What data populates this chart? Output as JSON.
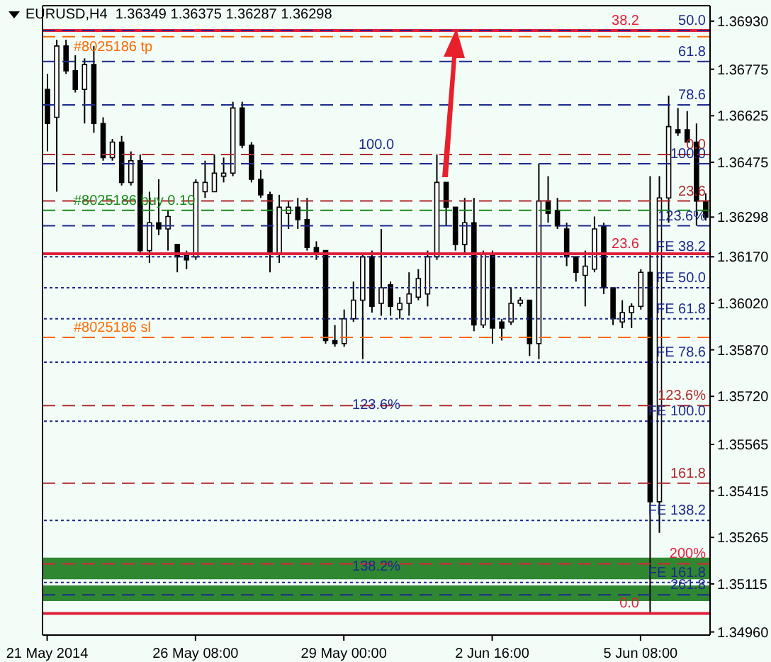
{
  "chart_data": {
    "type": "candlestick",
    "title": "EURUSD,H4  1.36349 1.36375 1.36287 1.36298",
    "categories": [
      "21 May 2014",
      null,
      null,
      null,
      null,
      null,
      null,
      null,
      null,
      null,
      null,
      null,
      null,
      null,
      null,
      null,
      "26 May 08:00",
      null,
      null,
      null,
      null,
      null,
      null,
      null,
      null,
      null,
      null,
      null,
      null,
      null,
      null,
      null,
      "29 May 00:00",
      null,
      null,
      null,
      null,
      null,
      null,
      null,
      null,
      null,
      null,
      null,
      null,
      null,
      null,
      null,
      "2 Jun 16:00",
      null,
      null,
      null,
      null,
      null,
      null,
      null,
      null,
      null,
      null,
      null,
      null,
      null,
      null,
      null,
      "5 Jun 08:00",
      null,
      null,
      null,
      null,
      null,
      null,
      null
    ],
    "ohlc": [
      [
        1.3671,
        1.3676,
        1.3651,
        1.366
      ],
      [
        1.3662,
        1.3687,
        1.3638,
        1.3685
      ],
      [
        1.3685,
        1.3687,
        1.3676,
        1.3677
      ],
      [
        1.3677,
        1.3682,
        1.367,
        1.3671
      ],
      [
        1.3671,
        1.3681,
        1.366,
        1.3679
      ],
      [
        1.3679,
        1.3685,
        1.3657,
        1.366
      ],
      [
        1.366,
        1.3662,
        1.3648,
        1.3649
      ],
      [
        1.3649,
        1.3655,
        1.3648,
        1.3654
      ],
      [
        1.3654,
        1.3656,
        1.364,
        1.3641
      ],
      [
        1.3641,
        1.3651,
        1.364,
        1.3648
      ],
      [
        1.3648,
        1.365,
        1.3618,
        1.3619
      ],
      [
        1.3619,
        1.3638,
        1.3615,
        1.3628
      ],
      [
        1.3628,
        1.3642,
        1.3624,
        1.3626
      ],
      [
        1.3626,
        1.3632,
        1.3619,
        1.363
      ],
      [
        1.3621,
        1.3621,
        1.3612,
        1.3617
      ],
      [
        1.3618,
        1.3619,
        1.3613,
        1.3616
      ],
      [
        1.3617,
        1.3642,
        1.3616,
        1.3641
      ],
      [
        1.3638,
        1.3648,
        1.3636,
        1.3641
      ],
      [
        1.3638,
        1.365,
        1.3638,
        1.3644
      ],
      [
        1.3643,
        1.3649,
        1.3641,
        1.3644
      ],
      [
        1.3644,
        1.3667,
        1.3643,
        1.3665
      ],
      [
        1.3665,
        1.3667,
        1.3652,
        1.3653
      ],
      [
        1.3653,
        1.3654,
        1.3641,
        1.3642
      ],
      [
        1.3642,
        1.3645,
        1.3636,
        1.3637
      ],
      [
        1.3637,
        1.3638,
        1.3612,
        1.3618
      ],
      [
        1.3618,
        1.3637,
        1.3615,
        1.3633
      ],
      [
        1.3631,
        1.3635,
        1.3626,
        1.3633
      ],
      [
        1.3633,
        1.3636,
        1.3626,
        1.3629
      ],
      [
        1.3629,
        1.3636,
        1.3619,
        1.362
      ],
      [
        1.362,
        1.3622,
        1.3616,
        1.3618
      ],
      [
        1.3619,
        1.3619,
        1.3589,
        1.359
      ],
      [
        1.359,
        1.3595,
        1.3588,
        1.3589
      ],
      [
        1.3589,
        1.36,
        1.3588,
        1.3597
      ],
      [
        1.3597,
        1.3609,
        1.3596,
        1.3603
      ],
      [
        1.3603,
        1.3618,
        1.3584,
        1.3617
      ],
      [
        1.3617,
        1.3619,
        1.3599,
        1.3601
      ],
      [
        1.3602,
        1.3626,
        1.3598,
        1.3607
      ],
      [
        1.3608,
        1.3609,
        1.3598,
        1.3601
      ],
      [
        1.36,
        1.3604,
        1.3597,
        1.3602
      ],
      [
        1.3602,
        1.3612,
        1.3598,
        1.3605
      ],
      [
        1.3604,
        1.3613,
        1.3603,
        1.361
      ],
      [
        1.3605,
        1.3619,
        1.3601,
        1.3617
      ],
      [
        1.3617,
        1.365,
        1.3616,
        1.3641
      ],
      [
        1.3641,
        1.3641,
        1.3627,
        1.3633
      ],
      [
        1.3633,
        1.3633,
        1.3619,
        1.3621
      ],
      [
        1.3621,
        1.3636,
        1.3618,
        1.3628
      ],
      [
        1.3628,
        1.3636,
        1.3593,
        1.3595
      ],
      [
        1.3595,
        1.3619,
        1.3594,
        1.3618
      ],
      [
        1.3618,
        1.3619,
        1.3589,
        1.3594
      ],
      [
        1.3596,
        1.3597,
        1.359,
        1.3594
      ],
      [
        1.3596,
        1.3607,
        1.3595,
        1.3602
      ],
      [
        1.3602,
        1.3604,
        1.3601,
        1.3603
      ],
      [
        1.3603,
        1.3603,
        1.3585,
        1.3589
      ],
      [
        1.3589,
        1.3647,
        1.3584,
        1.3635
      ],
      [
        1.3635,
        1.3643,
        1.3628,
        1.3631
      ],
      [
        1.3632,
        1.3636,
        1.3626,
        1.3627
      ],
      [
        1.3626,
        1.3628,
        1.3614,
        1.3617
      ],
      [
        1.3617,
        1.3617,
        1.3609,
        1.3612
      ],
      [
        1.3611,
        1.3619,
        1.3601,
        1.3614
      ],
      [
        1.3613,
        1.363,
        1.3612,
        1.3626
      ],
      [
        1.3627,
        1.3628,
        1.3605,
        1.3607
      ],
      [
        1.3607,
        1.3607,
        1.3595,
        1.3597
      ],
      [
        1.3596,
        1.3603,
        1.3594,
        1.3599
      ],
      [
        1.3599,
        1.3602,
        1.3594,
        1.3601
      ],
      [
        1.3601,
        1.3613,
        1.36,
        1.3612
      ],
      [
        1.3612,
        1.3643,
        1.3502,
        1.3538
      ],
      [
        1.3538,
        1.3643,
        1.3528,
        1.3636
      ],
      [
        1.3636,
        1.3669,
        1.3628,
        1.3659
      ],
      [
        1.3658,
        1.3665,
        1.3656,
        1.3657
      ],
      [
        1.3658,
        1.3664,
        1.3654,
        1.3654
      ],
      [
        1.3654,
        1.366,
        1.3627,
        1.3635
      ],
      [
        1.36349,
        1.36375,
        1.36287,
        1.36298
      ]
    ],
    "ylim": [
      1.3495,
      1.3698
    ],
    "yticks": [
      {
        "value": 1.3693,
        "label": "1.36930"
      },
      {
        "value": 1.36775,
        "label": "1.36775"
      },
      {
        "value": 1.36625,
        "label": "1.36625"
      },
      {
        "value": 1.36475,
        "label": "1.36475"
      },
      {
        "value": 1.36298,
        "label": "1.36298"
      },
      {
        "value": 1.3617,
        "label": "1.36170"
      },
      {
        "value": 1.3602,
        "label": "1.36020"
      },
      {
        "value": 1.3587,
        "label": "1.35870"
      },
      {
        "value": 1.3572,
        "label": "1.35720"
      },
      {
        "value": 1.35565,
        "label": "1.35565"
      },
      {
        "value": 1.35415,
        "label": "1.35415"
      },
      {
        "value": 1.35265,
        "label": "1.35265"
      },
      {
        "value": 1.35115,
        "label": "1.35115"
      },
      {
        "value": 1.3496,
        "label": "1.34960"
      }
    ],
    "ref_lines": [
      {
        "axis": "y",
        "value": 1.369,
        "color": "#e0203c",
        "line_style": "solid"
      },
      {
        "axis": "y",
        "value": 1.3688,
        "color": "#ff6a00",
        "line_style": "dashed"
      },
      {
        "axis": "y",
        "value": 1.369,
        "color": "#1c2a8c",
        "line_style": "dashed"
      },
      {
        "axis": "y",
        "value": 1.368,
        "color": "#1c2a8c",
        "line_style": "dashed"
      },
      {
        "axis": "y",
        "value": 1.3666,
        "color": "#1c2a8c",
        "line_style": "dashed"
      },
      {
        "axis": "y",
        "value": 1.365,
        "color": "#b02a2a",
        "line_style": "dashed"
      },
      {
        "axis": "y",
        "value": 1.3647,
        "color": "#1c2a8c",
        "line_style": "dashed"
      },
      {
        "axis": "y",
        "value": 1.3635,
        "color": "#b02a2a",
        "line_style": "dashed"
      },
      {
        "axis": "y",
        "value": 1.3632,
        "color": "#1a8a1a",
        "line_style": "dashed"
      },
      {
        "axis": "y",
        "value": 1.3627,
        "color": "#1c2a8c",
        "line_style": "dashed"
      },
      {
        "axis": "y",
        "value": 1.3618,
        "color": "#e0203c",
        "line_style": "solid"
      },
      {
        "axis": "y",
        "value": 1.3617,
        "color": "#1c2a8c",
        "line_style": "dotted"
      },
      {
        "axis": "y",
        "value": 1.3607,
        "color": "#1c2a8c",
        "line_style": "dotted"
      },
      {
        "axis": "y",
        "value": 1.3597,
        "color": "#1c2a8c",
        "line_style": "dotted"
      },
      {
        "axis": "y",
        "value": 1.3591,
        "color": "#ff6a00",
        "line_style": "dashed"
      },
      {
        "axis": "y",
        "value": 1.3583,
        "color": "#1c2a8c",
        "line_style": "dotted"
      },
      {
        "axis": "y",
        "value": 1.3569,
        "color": "#b02a2a",
        "line_style": "dashed"
      },
      {
        "axis": "y",
        "value": 1.3564,
        "color": "#1c2a8c",
        "line_style": "dotted"
      },
      {
        "axis": "y",
        "value": 1.3544,
        "color": "#b02a2a",
        "line_style": "dashed"
      },
      {
        "axis": "y",
        "value": 1.3532,
        "color": "#1c2a8c",
        "line_style": "dotted"
      },
      {
        "axis": "y",
        "value": 1.3518,
        "color": "#e0203c",
        "line_style": "dashed"
      },
      {
        "axis": "y",
        "value": 1.3512,
        "color": "#1c2a8c",
        "line_style": "dotted"
      },
      {
        "axis": "y",
        "value": 1.3508,
        "color": "#1c2a8c",
        "line_style": "dashed"
      },
      {
        "axis": "y",
        "value": 1.3502,
        "color": "#e0203c",
        "line_style": "solid"
      }
    ],
    "bands": [
      {
        "axis": "y",
        "from": 1.3513,
        "to": 1.352,
        "color": "#1b7a1b"
      },
      {
        "axis": "y",
        "from": 1.3506,
        "to": 1.3511,
        "color": "#1b7a1b"
      }
    ],
    "annotations": [
      {
        "text": "38.2",
        "y": 1.369
      },
      {
        "text": "#8025186 tp",
        "y": 1.3688
      },
      {
        "text": "50.0",
        "y": 1.369
      },
      {
        "text": "61.8",
        "y": 1.368
      },
      {
        "text": "78.6",
        "y": 1.3666
      },
      {
        "text": "0.0",
        "y": 1.365
      },
      {
        "text": "100.0",
        "y": 1.3647
      },
      {
        "text": "23.6",
        "y": 1.3635
      },
      {
        "text": "#8025186 buy 0.10",
        "y": 1.3632
      },
      {
        "text": "123.6%",
        "y": 1.3627
      },
      {
        "text": "23.6",
        "y": 1.3618
      },
      {
        "text": "FE 38.2",
        "y": 1.3617
      },
      {
        "text": "FE 50.0",
        "y": 1.3607
      },
      {
        "text": "FE 61.8",
        "y": 1.3597
      },
      {
        "text": "#8025186 sl",
        "y": 1.3591
      },
      {
        "text": "FE 78.6",
        "y": 1.3583
      },
      {
        "text": "123.6%",
        "y": 1.3569
      },
      {
        "text": "FE 100.0",
        "y": 1.3564
      },
      {
        "text": "161.8",
        "y": 1.3544
      },
      {
        "text": "FE 138.2",
        "y": 1.3532
      },
      {
        "text": "200%",
        "y": 1.3518
      },
      {
        "text": "FE 161.8",
        "y": 1.3512
      },
      {
        "text": "261.8",
        "y": 1.3508
      },
      {
        "text": "0.0",
        "y": 1.3502
      },
      {
        "text": "100.0",
        "y": 1.365
      },
      {
        "text": "123.6%",
        "y": 1.3566
      },
      {
        "text": "138.2%",
        "y": 1.3514
      }
    ]
  }
}
